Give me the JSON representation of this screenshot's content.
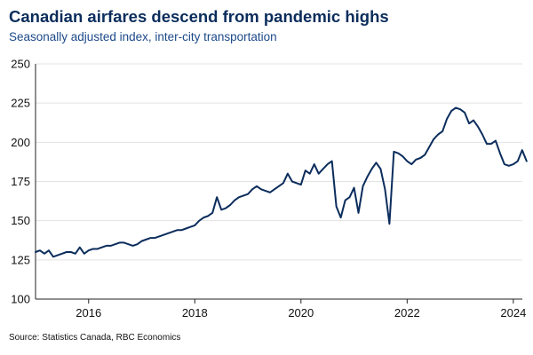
{
  "chart_data": {
    "type": "line",
    "title": "Canadian airfares descend from pandemic highs",
    "subtitle": "Seasonally adjusted index, inter-city transportation",
    "source": "Source: Statistics Canada, RBC Economics",
    "xlabel": "",
    "ylabel": "",
    "x_start": "2015-01",
    "xlim": [
      2015.0,
      2024.17
    ],
    "ylim": [
      100,
      250
    ],
    "yticks": [
      100,
      125,
      150,
      175,
      200,
      225,
      250
    ],
    "xticks": [
      {
        "value": 2016,
        "label": "2016"
      },
      {
        "value": 2018,
        "label": "2018"
      },
      {
        "value": 2020,
        "label": "2020"
      },
      {
        "value": 2022,
        "label": "2022"
      },
      {
        "value": 2024,
        "label": "2024"
      }
    ],
    "grid": "horizontal",
    "colors": {
      "line": "#0b2d5c",
      "grid": "#e3e3e3",
      "axis": "#222222"
    },
    "series": [
      {
        "name": "Inter-city transportation index",
        "values": [
          130,
          131,
          129,
          131,
          127,
          128,
          129,
          130,
          130,
          129,
          133,
          129,
          131,
          132,
          132,
          133,
          134,
          134,
          135,
          136,
          136,
          135,
          134,
          135,
          137,
          138,
          139,
          139,
          140,
          141,
          142,
          143,
          144,
          144,
          145,
          146,
          147,
          150,
          152,
          153,
          155,
          165,
          157,
          158,
          160,
          163,
          165,
          166,
          167,
          170,
          172,
          170,
          169,
          168,
          170,
          172,
          174,
          180,
          175,
          174,
          173,
          182,
          180,
          186,
          180,
          183,
          186,
          188,
          159,
          152,
          163,
          165,
          171,
          155,
          172,
          178,
          183,
          187,
          183,
          170,
          148,
          194,
          193,
          191,
          188,
          186,
          189,
          190,
          192,
          197,
          202,
          205,
          207,
          215,
          220,
          222,
          221,
          219,
          212,
          214,
          210,
          205,
          199,
          199,
          201,
          193,
          186,
          185,
          186,
          188,
          195,
          188
        ]
      }
    ]
  }
}
